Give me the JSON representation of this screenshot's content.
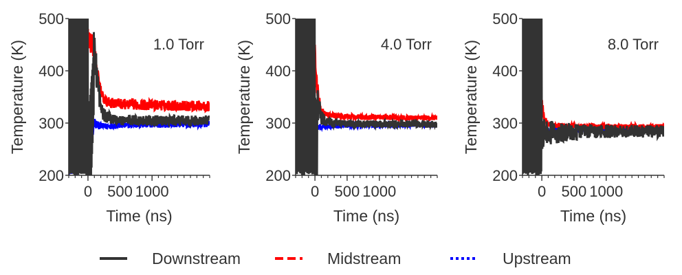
{
  "colors": {
    "downstream": "#333333",
    "midstream": "#ff0000",
    "upstream": "#0000ff",
    "axis": "#333333",
    "text": "#333333"
  },
  "legend": {
    "position": "bottom-center",
    "items": [
      {
        "series": "downstream",
        "label": "Downstream",
        "dash": "solid"
      },
      {
        "series": "midstream",
        "label": "Midstream",
        "dash": "dashed"
      },
      {
        "series": "upstream",
        "label": "Upstream",
        "dash": "dotted"
      }
    ]
  },
  "chart_data": [
    {
      "type": "line",
      "annotation": "1.0 Torr",
      "xlabel": "Time (ns)",
      "ylabel": "Temperature (K)",
      "xlim": [
        -300,
        1900
      ],
      "ylim": [
        200,
        500
      ],
      "xticks": [
        0,
        500,
        1000
      ],
      "yticks": [
        200,
        300,
        400,
        500
      ],
      "grid": false,
      "series": [
        {
          "name": "Downstream",
          "key": "downstream",
          "x": [
            -300,
            -100,
            -1,
            0,
            100,
            150,
            200,
            250,
            300,
            400,
            500,
            600,
            800,
            1000,
            1200,
            1400,
            1600,
            1800,
            1900
          ],
          "y": [
            500,
            500,
            500,
            300,
            450,
            380,
            330,
            315,
            312,
            308,
            305,
            306,
            305,
            305,
            304,
            305,
            304,
            305,
            305
          ],
          "spread": [
            150,
            150,
            150,
            140,
            50,
            30,
            15,
            12,
            12,
            10,
            10,
            10,
            10,
            10,
            10,
            10,
            10,
            10,
            10
          ]
        },
        {
          "name": "Midstream",
          "key": "midstream",
          "x": [
            -300,
            -100,
            0,
            100,
            150,
            200,
            250,
            300,
            400,
            500,
            600,
            800,
            1000,
            1200,
            1400,
            1600,
            1800,
            1900
          ],
          "y": [
            500,
            500,
            470,
            440,
            390,
            360,
            345,
            340,
            338,
            337,
            336,
            335,
            334,
            334,
            333,
            333,
            333,
            332
          ],
          "spread": [
            0,
            0,
            30,
            20,
            15,
            12,
            10,
            10,
            10,
            10,
            10,
            10,
            10,
            10,
            10,
            10,
            10,
            10
          ]
        },
        {
          "name": "Upstream",
          "key": "upstream",
          "x": [
            -300,
            -200,
            -100,
            0,
            50,
            100,
            150,
            200,
            300,
            400,
            500,
            600,
            800,
            1000,
            1200,
            1400,
            1600,
            1800,
            1900
          ],
          "y": [
            215,
            212,
            215,
            220,
            275,
            300,
            296,
            294,
            294,
            295,
            296,
            296,
            297,
            297,
            297,
            298,
            297,
            298,
            298
          ],
          "spread": [
            12,
            12,
            12,
            15,
            20,
            12,
            8,
            6,
            6,
            6,
            6,
            6,
            6,
            6,
            6,
            6,
            6,
            6,
            6
          ]
        }
      ]
    },
    {
      "type": "line",
      "annotation": "4.0 Torr",
      "xlabel": "Time (ns)",
      "ylabel": "Temperature (K)",
      "xlim": [
        -300,
        1900
      ],
      "ylim": [
        200,
        500
      ],
      "xticks": [
        0,
        500,
        1000
      ],
      "yticks": [
        200,
        300,
        400,
        500
      ],
      "grid": false,
      "series": [
        {
          "name": "Downstream",
          "key": "downstream",
          "x": [
            -300,
            -100,
            -1,
            0,
            50,
            100,
            150,
            200,
            300,
            400,
            500,
            600,
            800,
            1000,
            1200,
            1400,
            1600,
            1800,
            1900
          ],
          "y": [
            500,
            500,
            500,
            350,
            330,
            312,
            305,
            302,
            300,
            299,
            298,
            298,
            298,
            298,
            298,
            298,
            298,
            298,
            298
          ],
          "spread": [
            150,
            150,
            150,
            150,
            30,
            15,
            10,
            8,
            8,
            7,
            7,
            7,
            7,
            7,
            7,
            7,
            7,
            7,
            7
          ]
        },
        {
          "name": "Midstream",
          "key": "midstream",
          "x": [
            -300,
            0,
            50,
            100,
            150,
            200,
            300,
            400,
            500,
            600,
            800,
            1000,
            1200,
            1400,
            1600,
            1800,
            1900
          ],
          "y": [
            500,
            420,
            350,
            325,
            318,
            316,
            314,
            313,
            312,
            312,
            311,
            311,
            311,
            310,
            310,
            310,
            310
          ],
          "spread": [
            0,
            30,
            15,
            8,
            6,
            5,
            5,
            5,
            5,
            5,
            5,
            5,
            5,
            5,
            5,
            5,
            5
          ]
        },
        {
          "name": "Upstream",
          "key": "upstream",
          "x": [
            0,
            100,
            200,
            300,
            400,
            500,
            600,
            800,
            1000,
            1200,
            1400,
            1600,
            1800,
            1900
          ],
          "y": [
            290,
            292,
            293,
            294,
            294,
            295,
            295,
            295,
            295,
            296,
            296,
            296,
            296,
            296
          ],
          "spread": [
            5,
            5,
            4,
            4,
            4,
            4,
            4,
            4,
            4,
            4,
            4,
            4,
            4,
            4
          ]
        }
      ]
    },
    {
      "type": "line",
      "annotation": "8.0 Torr",
      "xlabel": "Time (ns)",
      "ylabel": "Temperature (K)",
      "xlim": [
        -300,
        1900
      ],
      "ylim": [
        200,
        500
      ],
      "xticks": [
        0,
        500,
        1000
      ],
      "yticks": [
        200,
        300,
        400,
        500
      ],
      "grid": false,
      "series": [
        {
          "name": "Downstream",
          "key": "downstream",
          "x": [
            -300,
            -100,
            -1,
            0,
            50,
            100,
            200,
            300,
            400,
            500,
            600,
            800,
            1000,
            1200,
            1400,
            1600,
            1800,
            1900
          ],
          "y": [
            500,
            500,
            500,
            280,
            280,
            280,
            282,
            283,
            283,
            283,
            284,
            284,
            284,
            284,
            284,
            284,
            284,
            284
          ],
          "spread": [
            150,
            150,
            150,
            30,
            28,
            25,
            22,
            20,
            18,
            16,
            15,
            14,
            13,
            12,
            12,
            12,
            12,
            12
          ]
        },
        {
          "name": "Midstream",
          "key": "midstream",
          "x": [
            0,
            50,
            100,
            200,
            300,
            400,
            500,
            600,
            800,
            1000,
            1200,
            1400,
            1600,
            1800,
            1900
          ],
          "y": [
            330,
            305,
            298,
            296,
            295,
            294,
            294,
            293,
            293,
            293,
            293,
            293,
            293,
            293,
            293
          ],
          "spread": [
            20,
            8,
            6,
            5,
            5,
            5,
            5,
            5,
            5,
            5,
            5,
            5,
            5,
            5,
            5
          ]
        },
        {
          "name": "Upstream",
          "key": "upstream",
          "x": [
            0,
            200,
            400,
            600,
            800,
            1000,
            1200,
            1400,
            1600,
            1800,
            1900
          ],
          "y": [
            286,
            287,
            287,
            287,
            287,
            287,
            287,
            287,
            287,
            287,
            287
          ],
          "spread": [
            4,
            4,
            4,
            4,
            4,
            4,
            4,
            4,
            4,
            4,
            4
          ]
        }
      ]
    }
  ]
}
